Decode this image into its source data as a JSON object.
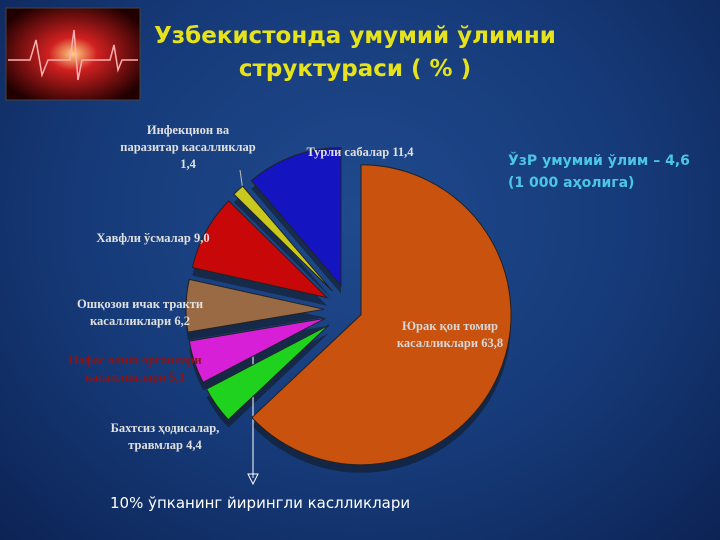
{
  "chart_data": {
    "type": "pie",
    "title": "Узбекистонда умумий ўлимни структураси ( % )",
    "annotation": "ЎзР умумий ўлим – 4,6 (1 000 аҳолига)",
    "footnote": "10% ўпканинг йирингли каслликлари",
    "categories": [
      "Юрак қон томир касалликлари",
      "Бахтсиз ҳодисалар, травмлар",
      "Нафас олиш органлари касалликлари",
      "Ошқозон ичак тракти касалликлари",
      "Хавфли ўсмалар",
      "Инфекцион ва паразитар касалликлар",
      "Турли сабалар"
    ],
    "values": [
      63.8,
      4.4,
      5.1,
      6.2,
      9.0,
      1.4,
      11.4
    ],
    "value_labels": [
      "63,8",
      "4,4",
      "5,1",
      "6,2",
      "9,0",
      "1,4",
      "11,4"
    ],
    "colors": [
      "#c8520e",
      "#1ed21e",
      "#d81fd8",
      "#9a6a44",
      "#c80808",
      "#c8c81e",
      "#1414c0"
    ]
  }
}
